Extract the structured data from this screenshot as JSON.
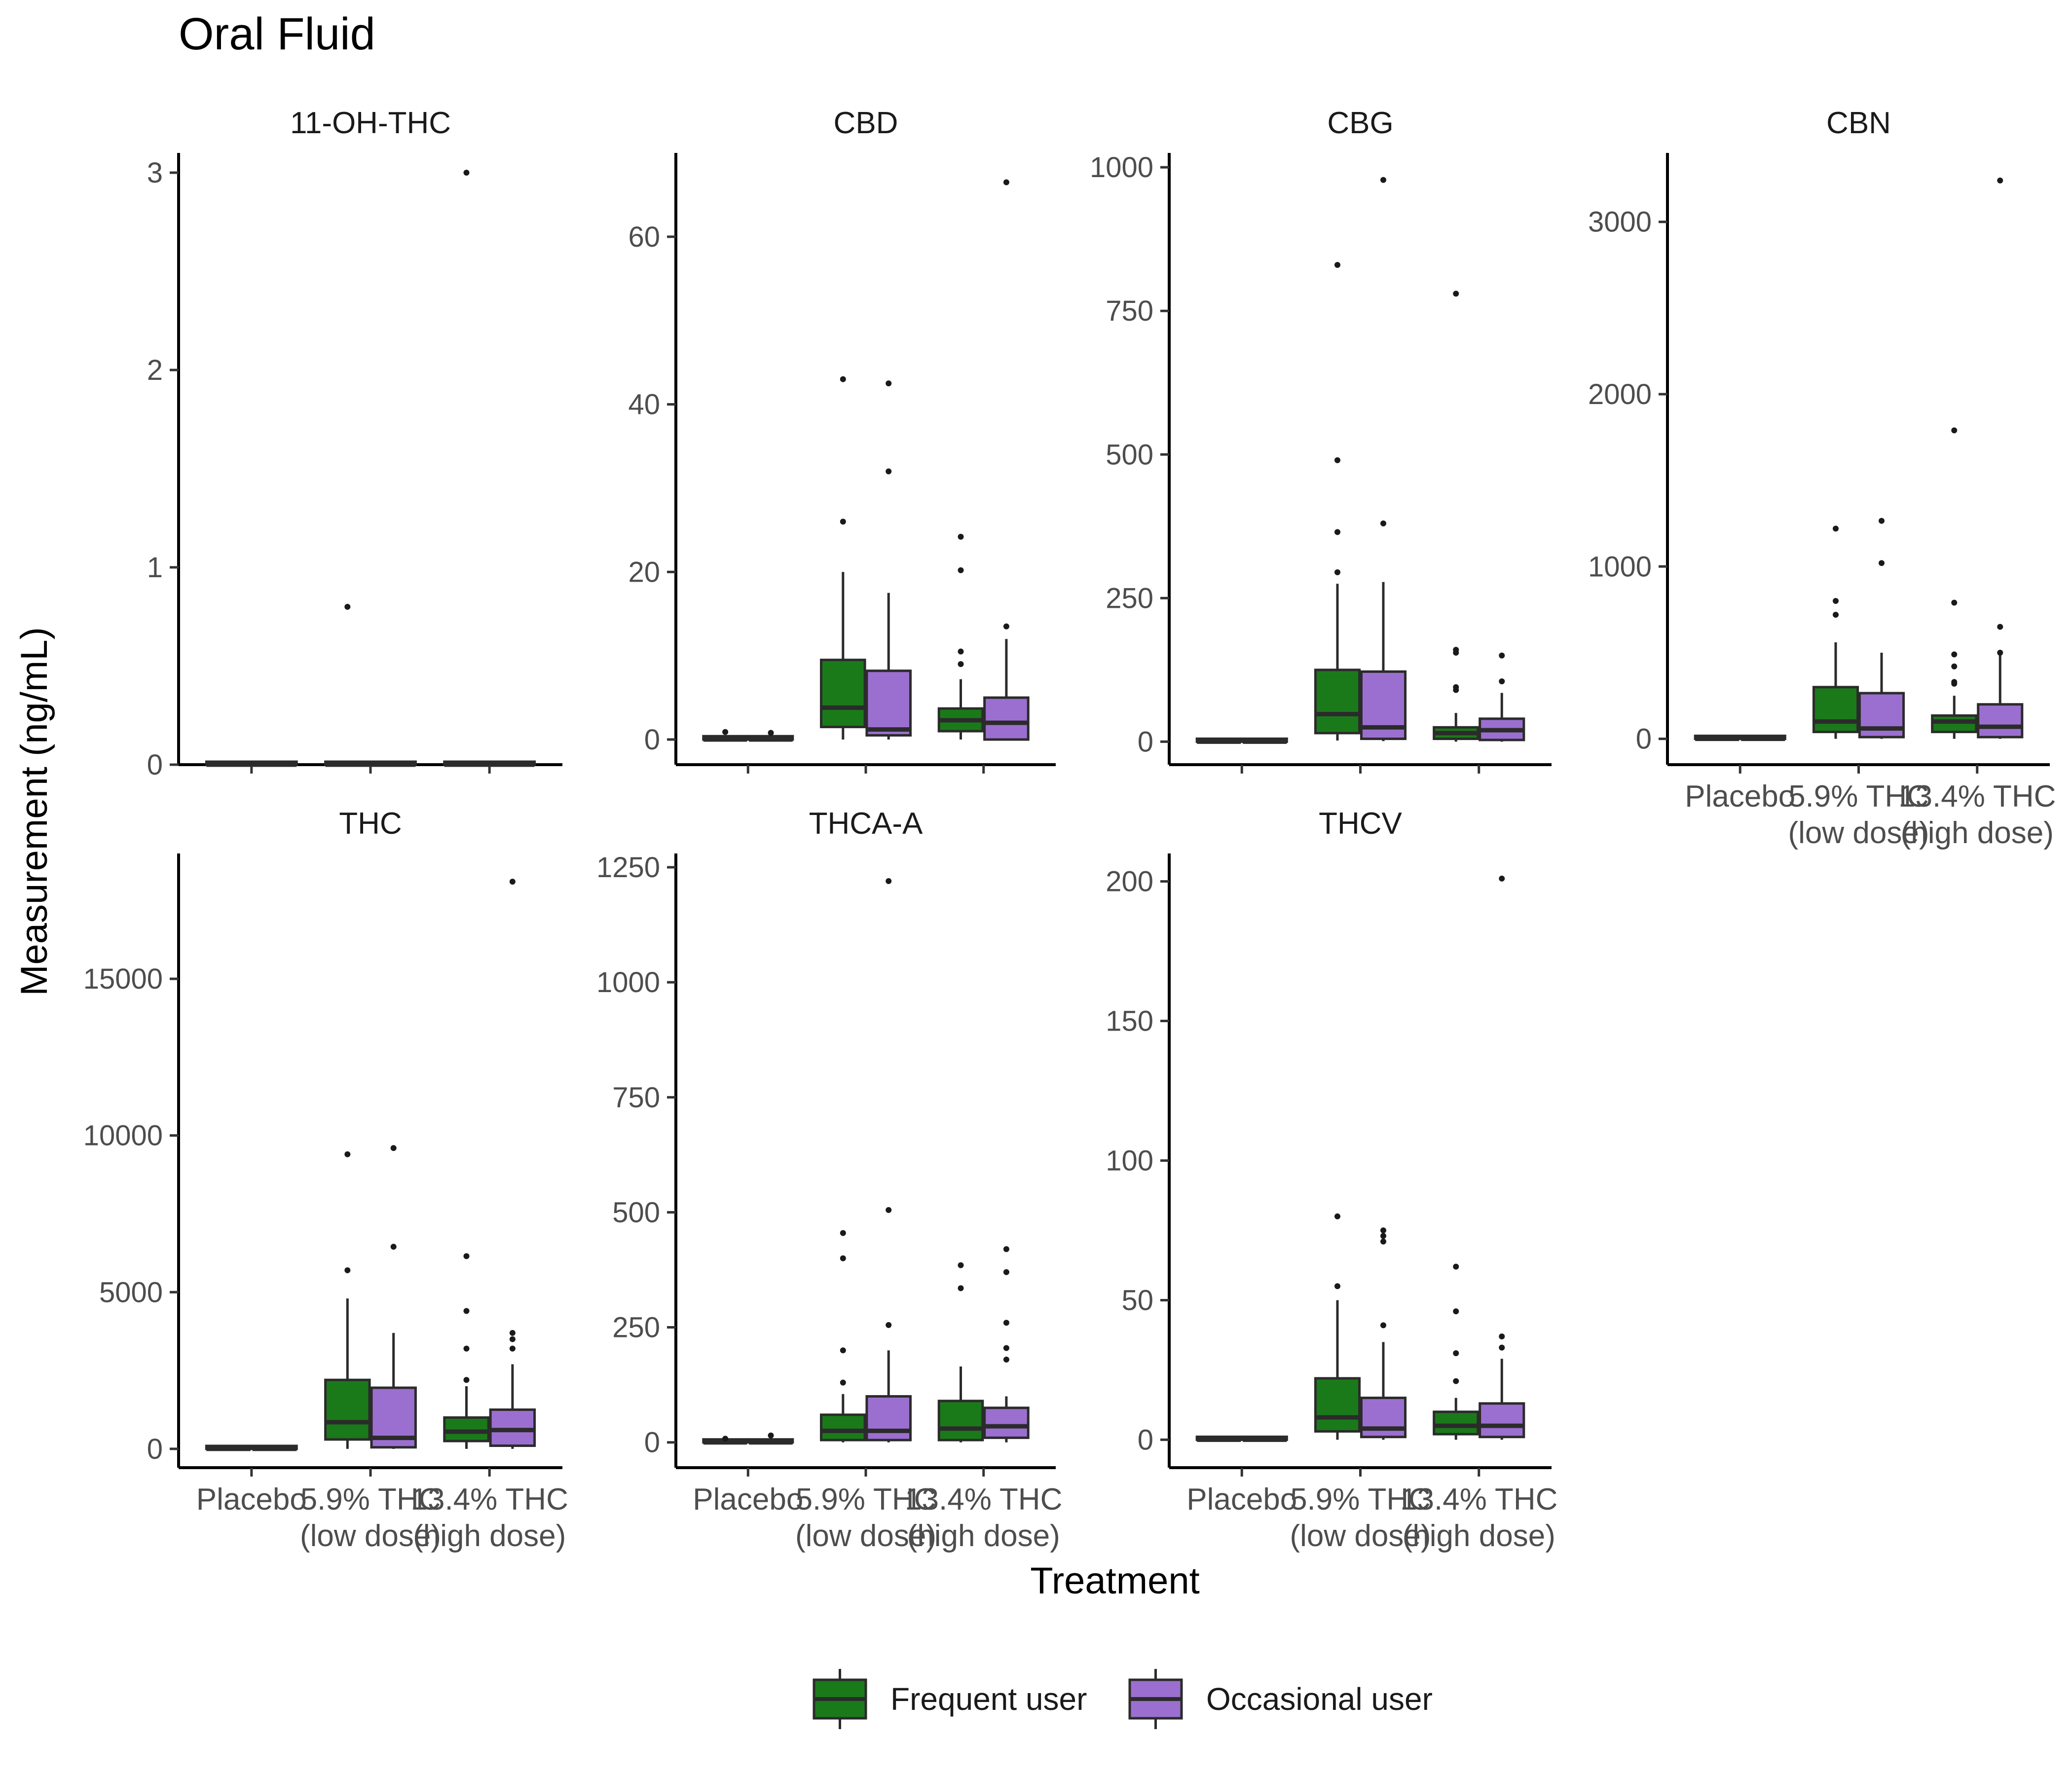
{
  "chart_data": {
    "type": "box",
    "title": "Oral Fluid",
    "xlabel": "Treatment",
    "ylabel": "Measurement (ng/mL)",
    "categories": [
      "Placebo",
      "5.9% THC\n(low dose)",
      "13.4% THC\n(high dose)"
    ],
    "groups": [
      "Frequent user",
      "Occasional user"
    ],
    "colors": {
      "Frequent user": "#1a7a1a",
      "Occasional user": "#9b6fcf",
      "outline": "#2b2b2b",
      "axis": "#000000",
      "tick_label": "#4d4d4d"
    },
    "legend_position": "bottom",
    "grid": false,
    "panels": [
      {
        "name": "11-OH-THC",
        "ylim": [
          0,
          3.1
        ],
        "yticks": [
          0,
          1,
          2,
          3
        ],
        "boxes": [
          {
            "category": 0,
            "group": "Frequent user",
            "q1": 0,
            "median": 0,
            "q3": 0,
            "whisker_low": 0,
            "whisker_high": 0,
            "outliers": []
          },
          {
            "category": 0,
            "group": "Occasional user",
            "q1": 0,
            "median": 0,
            "q3": 0,
            "whisker_low": 0,
            "whisker_high": 0,
            "outliers": []
          },
          {
            "category": 1,
            "group": "Frequent user",
            "q1": 0,
            "median": 0,
            "q3": 0,
            "whisker_low": 0,
            "whisker_high": 0,
            "outliers": [
              0.8
            ]
          },
          {
            "category": 1,
            "group": "Occasional user",
            "q1": 0,
            "median": 0,
            "q3": 0,
            "whisker_low": 0,
            "whisker_high": 0,
            "outliers": []
          },
          {
            "category": 2,
            "group": "Frequent user",
            "q1": 0,
            "median": 0,
            "q3": 0,
            "whisker_low": 0,
            "whisker_high": 0,
            "outliers": [
              3.0
            ]
          },
          {
            "category": 2,
            "group": "Occasional user",
            "q1": 0,
            "median": 0,
            "q3": 0,
            "whisker_low": 0,
            "whisker_high": 0,
            "outliers": []
          }
        ]
      },
      {
        "name": "CBD",
        "ylim": [
          -3,
          70
        ],
        "yticks": [
          0,
          20,
          40,
          60
        ],
        "boxes": [
          {
            "category": 0,
            "group": "Frequent user",
            "q1": 0,
            "median": 0,
            "q3": 0.4,
            "whisker_low": 0,
            "whisker_high": 0.4,
            "outliers": [
              0.9
            ]
          },
          {
            "category": 0,
            "group": "Occasional user",
            "q1": 0,
            "median": 0,
            "q3": 0.4,
            "whisker_low": 0,
            "whisker_high": 0.4,
            "outliers": [
              0.8
            ]
          },
          {
            "category": 1,
            "group": "Frequent user",
            "q1": 1.5,
            "median": 3.8,
            "q3": 9.5,
            "whisker_low": 0,
            "whisker_high": 20,
            "outliers": [
              26,
              43
            ]
          },
          {
            "category": 1,
            "group": "Occasional user",
            "q1": 0.5,
            "median": 1.2,
            "q3": 8.2,
            "whisker_low": 0,
            "whisker_high": 17.5,
            "outliers": [
              32,
              42.5
            ]
          },
          {
            "category": 2,
            "group": "Frequent user",
            "q1": 1,
            "median": 2.3,
            "q3": 3.7,
            "whisker_low": 0,
            "whisker_high": 7.2,
            "outliers": [
              9,
              10.5,
              20.2,
              24.2
            ]
          },
          {
            "category": 2,
            "group": "Occasional user",
            "q1": 0,
            "median": 2,
            "q3": 5,
            "whisker_low": 0,
            "whisker_high": 12,
            "outliers": [
              13.5,
              66.5
            ]
          }
        ]
      },
      {
        "name": "CBG",
        "ylim": [
          -40,
          1025
        ],
        "yticks": [
          0,
          250,
          500,
          750,
          1000
        ],
        "boxes": [
          {
            "category": 0,
            "group": "Frequent user",
            "q1": 0,
            "median": 0,
            "q3": 0,
            "whisker_low": 0,
            "whisker_high": 0,
            "outliers": []
          },
          {
            "category": 0,
            "group": "Occasional user",
            "q1": 0,
            "median": 0,
            "q3": 0,
            "whisker_low": 0,
            "whisker_high": 0,
            "outliers": []
          },
          {
            "category": 1,
            "group": "Frequent user",
            "q1": 15,
            "median": 48,
            "q3": 125,
            "whisker_low": 2,
            "whisker_high": 275,
            "outliers": [
              295,
              365,
              490,
              830
            ]
          },
          {
            "category": 1,
            "group": "Occasional user",
            "q1": 5,
            "median": 25,
            "q3": 122,
            "whisker_low": 1,
            "whisker_high": 278,
            "outliers": [
              380,
              978
            ]
          },
          {
            "category": 2,
            "group": "Frequent user",
            "q1": 5,
            "median": 15,
            "q3": 25,
            "whisker_low": 0,
            "whisker_high": 50,
            "outliers": [
              90,
              95,
              155,
              160,
              780
            ]
          },
          {
            "category": 2,
            "group": "Occasional user",
            "q1": 3,
            "median": 20,
            "q3": 40,
            "whisker_low": 0,
            "whisker_high": 85,
            "outliers": [
              105,
              150
            ]
          }
        ]
      },
      {
        "name": "CBN",
        "ylim": [
          -150,
          3400
        ],
        "yticks": [
          0,
          1000,
          2000,
          3000
        ],
        "boxes": [
          {
            "category": 0,
            "group": "Frequent user",
            "q1": 0,
            "median": 0,
            "q3": 5,
            "whisker_low": 0,
            "whisker_high": 10,
            "outliers": []
          },
          {
            "category": 0,
            "group": "Occasional user",
            "q1": 0,
            "median": 0,
            "q3": 5,
            "whisker_low": 0,
            "whisker_high": 10,
            "outliers": []
          },
          {
            "category": 1,
            "group": "Frequent user",
            "q1": 40,
            "median": 100,
            "q3": 300,
            "whisker_low": 0,
            "whisker_high": 560,
            "outliers": [
              720,
              800,
              1220
            ]
          },
          {
            "category": 1,
            "group": "Occasional user",
            "q1": 10,
            "median": 60,
            "q3": 265,
            "whisker_low": 0,
            "whisker_high": 500,
            "outliers": [
              1020,
              1265
            ]
          },
          {
            "category": 2,
            "group": "Frequent user",
            "q1": 40,
            "median": 100,
            "q3": 135,
            "whisker_low": 0,
            "whisker_high": 250,
            "outliers": [
              320,
              330,
              420,
              490,
              790,
              1790
            ]
          },
          {
            "category": 2,
            "group": "Occasional user",
            "q1": 10,
            "median": 70,
            "q3": 200,
            "whisker_low": 0,
            "whisker_high": 490,
            "outliers": [
              500,
              650,
              3240
            ]
          }
        ]
      },
      {
        "name": "THC",
        "ylim": [
          -600,
          19000
        ],
        "yticks": [
          0,
          5000,
          10000,
          15000
        ],
        "boxes": [
          {
            "category": 0,
            "group": "Frequent user",
            "q1": 0,
            "median": 0,
            "q3": 0,
            "whisker_low": 0,
            "whisker_high": 0,
            "outliers": []
          },
          {
            "category": 0,
            "group": "Occasional user",
            "q1": 0,
            "median": 0,
            "q3": 0,
            "whisker_low": 0,
            "whisker_high": 0,
            "outliers": []
          },
          {
            "category": 1,
            "group": "Frequent user",
            "q1": 300,
            "median": 850,
            "q3": 2200,
            "whisker_low": 0,
            "whisker_high": 4800,
            "outliers": [
              5700,
              9400
            ]
          },
          {
            "category": 1,
            "group": "Occasional user",
            "q1": 50,
            "median": 350,
            "q3": 1950,
            "whisker_low": 0,
            "whisker_high": 3700,
            "outliers": [
              6450,
              9600
            ]
          },
          {
            "category": 2,
            "group": "Frequent user",
            "q1": 250,
            "median": 550,
            "q3": 1000,
            "whisker_low": 0,
            "whisker_high": 2000,
            "outliers": [
              2200,
              3200,
              4400,
              6150
            ]
          },
          {
            "category": 2,
            "group": "Occasional user",
            "q1": 100,
            "median": 600,
            "q3": 1250,
            "whisker_low": 0,
            "whisker_high": 2700,
            "outliers": [
              3200,
              3500,
              3700,
              18100
            ]
          }
        ]
      },
      {
        "name": "THCA-A",
        "ylim": [
          -55,
          1280
        ],
        "yticks": [
          0,
          250,
          500,
          750,
          1000,
          1250
        ],
        "boxes": [
          {
            "category": 0,
            "group": "Frequent user",
            "q1": 0,
            "median": 0,
            "q3": 2,
            "whisker_low": 0,
            "whisker_high": 5,
            "outliers": [
              8
            ]
          },
          {
            "category": 0,
            "group": "Occasional user",
            "q1": 0,
            "median": 0,
            "q3": 3,
            "whisker_low": 0,
            "whisker_high": 6,
            "outliers": [
              15
            ]
          },
          {
            "category": 1,
            "group": "Frequent user",
            "q1": 5,
            "median": 25,
            "q3": 60,
            "whisker_low": 0,
            "whisker_high": 105,
            "outliers": [
              130,
              200,
              400,
              455
            ]
          },
          {
            "category": 1,
            "group": "Occasional user",
            "q1": 5,
            "median": 25,
            "q3": 100,
            "whisker_low": 0,
            "whisker_high": 200,
            "outliers": [
              255,
              505,
              1220
            ]
          },
          {
            "category": 2,
            "group": "Frequent user",
            "q1": 5,
            "median": 30,
            "q3": 90,
            "whisker_low": 0,
            "whisker_high": 165,
            "outliers": [
              335,
              385
            ]
          },
          {
            "category": 2,
            "group": "Occasional user",
            "q1": 10,
            "median": 35,
            "q3": 75,
            "whisker_low": 0,
            "whisker_high": 100,
            "outliers": [
              180,
              205,
              260,
              370,
              420
            ]
          }
        ]
      },
      {
        "name": "THCV",
        "ylim": [
          -10,
          210
        ],
        "yticks": [
          0,
          50,
          100,
          150,
          200
        ],
        "boxes": [
          {
            "category": 0,
            "group": "Frequent user",
            "q1": 0,
            "median": 0,
            "q3": 0,
            "whisker_low": 0,
            "whisker_high": 0,
            "outliers": []
          },
          {
            "category": 0,
            "group": "Occasional user",
            "q1": 0,
            "median": 0,
            "q3": 0,
            "whisker_low": 0,
            "whisker_high": 0,
            "outliers": []
          },
          {
            "category": 1,
            "group": "Frequent user",
            "q1": 3,
            "median": 8,
            "q3": 22,
            "whisker_low": 0,
            "whisker_high": 50,
            "outliers": [
              55,
              80
            ]
          },
          {
            "category": 1,
            "group": "Occasional user",
            "q1": 1,
            "median": 4,
            "q3": 15,
            "whisker_low": 0,
            "whisker_high": 35,
            "outliers": [
              41,
              71,
              73,
              75
            ]
          },
          {
            "category": 2,
            "group": "Frequent user",
            "q1": 2,
            "median": 5,
            "q3": 10,
            "whisker_low": 0,
            "whisker_high": 15,
            "outliers": [
              21,
              31,
              46,
              62
            ]
          },
          {
            "category": 2,
            "group": "Occasional user",
            "q1": 1,
            "median": 5,
            "q3": 13,
            "whisker_low": 0,
            "whisker_high": 29,
            "outliers": [
              33,
              37,
              201
            ]
          }
        ]
      }
    ]
  }
}
